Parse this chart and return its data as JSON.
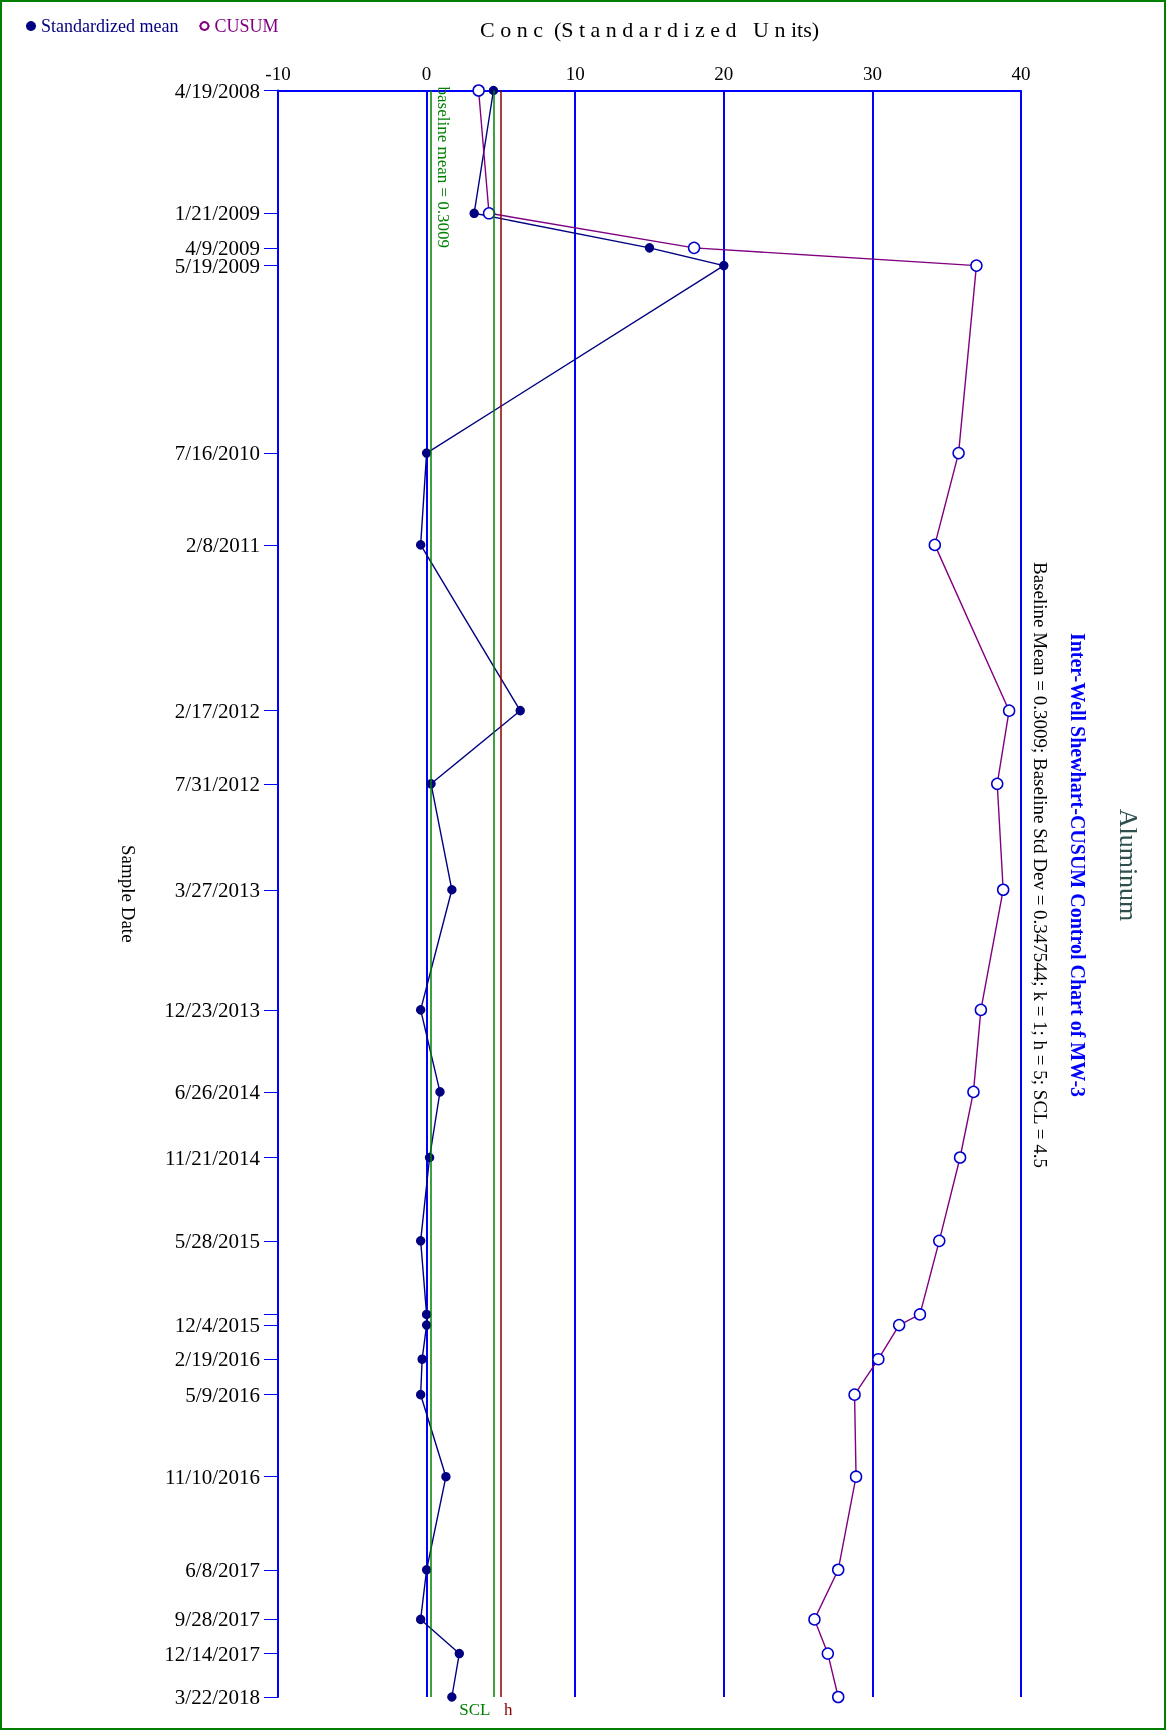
{
  "chart_data": {
    "type": "line",
    "title": "Aluminum",
    "subtitle": "Inter-Well Shewhart-CUSUM Control Chart of MW-3",
    "annotations": [
      "Baseline Mean = 0.3009; Baseline Std Dev = 0.347544; k = 1; h = 5; SCL = 4.5"
    ],
    "ylabel": "Sample Date",
    "xlabel": "C o n c  (S t a n d a r d i z e d   U n its)",
    "x": [
      "2008-04-19",
      "2009-01-21",
      "2009-04-09",
      "2009-05-19",
      "2010-07-16",
      "2011-02-08",
      "2012-02-17",
      "2012-07-31",
      "2013-03-27",
      "2013-12-23",
      "2014-06-26",
      "2014-11-21",
      "2015-05-28",
      "2015-11-10",
      "2015-12-04",
      "2016-02-19",
      "2016-05-09",
      "2016-11-10",
      "2017-06-08",
      "2017-09-28",
      "2017-12-14",
      "2018-03-22"
    ],
    "series": [
      {
        "name": "Standardized mean",
        "color": "#000080",
        "values": [
          4.5,
          3.2,
          15.0,
          20.0,
          0.0,
          -0.4,
          6.3,
          0.3,
          1.7,
          -0.4,
          0.9,
          0.2,
          -0.4,
          0.0,
          0.0,
          -0.3,
          -0.4,
          1.3,
          0.0,
          -0.4,
          2.2,
          1.7
        ]
      },
      {
        "name": "CUSUM",
        "color": "#800080",
        "values": [
          3.5,
          4.2,
          18.0,
          37.0,
          35.8,
          34.2,
          39.2,
          38.4,
          38.8,
          37.3,
          36.8,
          35.9,
          34.5,
          33.2,
          31.8,
          30.4,
          28.8,
          28.9,
          27.7,
          26.1,
          27.0,
          27.7
        ]
      }
    ],
    "orientation": "horizontal",
    "ylim": [
      "2018-03-22",
      "2008-04-19"
    ],
    "yticks": [
      {
        "value": "2008-04-19",
        "label": "4/19/2008"
      },
      {
        "value": "2009-01-21",
        "label": "1/21/2009"
      },
      {
        "value": "2009-04-09",
        "label": "4/9/2009"
      },
      {
        "value": "2009-05-19",
        "label": "5/19/2009"
      },
      {
        "value": "2010-07-16",
        "label": "7/16/2010"
      },
      {
        "value": "2011-02-08",
        "label": "2/8/2011"
      },
      {
        "value": "2012-02-17",
        "label": "2/17/2012"
      },
      {
        "value": "2012-07-31",
        "label": "7/31/2012"
      },
      {
        "value": "2013-03-27",
        "label": "3/27/2013"
      },
      {
        "value": "2013-12-23",
        "label": "12/23/2013"
      },
      {
        "value": "2014-06-26",
        "label": "6/26/2014"
      },
      {
        "value": "2014-11-21",
        "label": "11/21/2014"
      },
      {
        "value": "2015-05-28",
        "label": "5/28/2015"
      },
      {
        "value": "2015-11-10",
        "label": null
      },
      {
        "value": "2015-12-04",
        "label": "12/4/2015"
      },
      {
        "value": "2016-02-19",
        "label": "2/19/2016"
      },
      {
        "value": "2016-05-09",
        "label": "5/9/2016"
      },
      {
        "value": "2016-11-10",
        "label": "11/10/2016"
      },
      {
        "value": "2017-06-08",
        "label": "6/8/2017"
      },
      {
        "value": "2017-09-28",
        "label": "9/28/2017"
      },
      {
        "value": "2017-12-14",
        "label": "12/14/2017"
      },
      {
        "value": "2018-03-22",
        "label": "3/22/2018"
      }
    ],
    "xlim": [
      -10,
      40
    ],
    "xticks": [
      -10,
      0,
      10,
      20,
      30,
      40
    ],
    "ref_lines": [
      {
        "axis": "x",
        "value": 0.3009,
        "label": "baseline mean = 0.3009",
        "color": "#008000"
      },
      {
        "axis": "x",
        "value": 4.5,
        "label": "SCL",
        "color": "#008000"
      },
      {
        "axis": "x",
        "value": 5,
        "label": "h",
        "color": "#8b0000"
      }
    ],
    "grid": "x",
    "legend": "top left",
    "marker": "circle",
    "line_style": "solid"
  }
}
